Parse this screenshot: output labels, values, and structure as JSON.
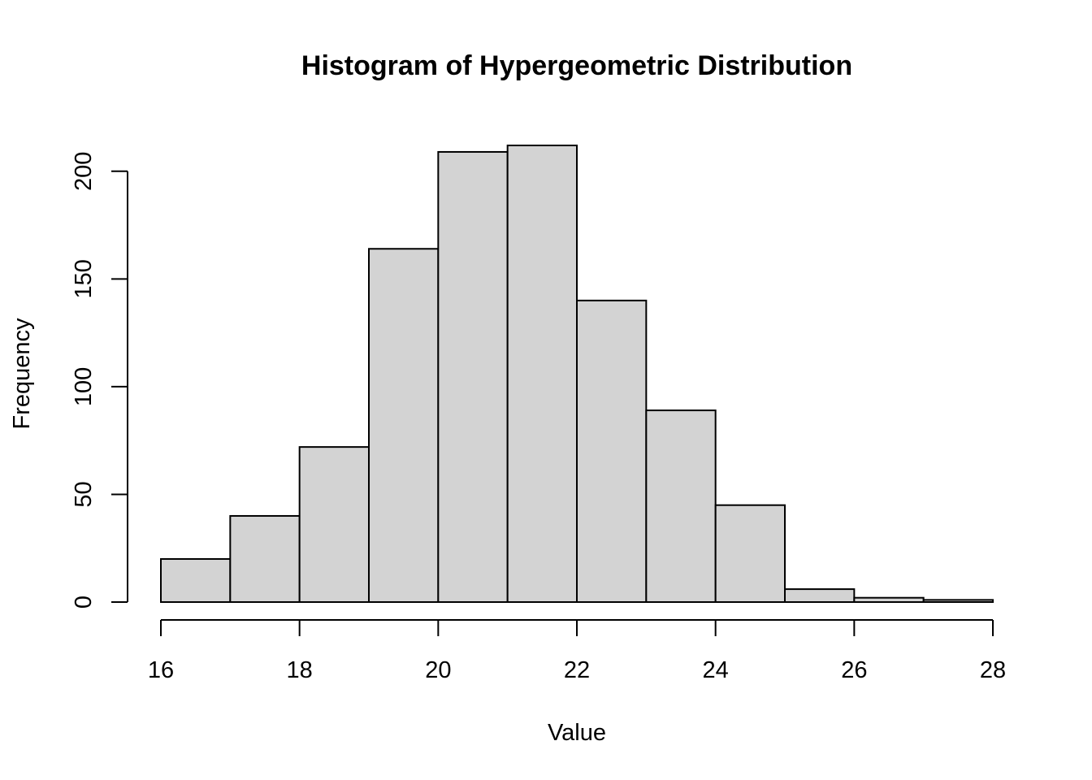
{
  "chart_data": {
    "type": "bar",
    "title": "Histogram of Hypergeometric Distribution",
    "xlabel": "Value",
    "ylabel": "Frequency",
    "bin_edges": [
      16,
      17,
      18,
      19,
      20,
      21,
      22,
      23,
      24,
      25,
      26,
      27,
      28
    ],
    "values": [
      20,
      40,
      72,
      164,
      209,
      212,
      140,
      89,
      45,
      6,
      2,
      1
    ],
    "xlim": [
      16,
      28
    ],
    "ylim": [
      0,
      212
    ],
    "x_ticks": [
      16,
      18,
      20,
      22,
      24,
      26,
      28
    ],
    "y_ticks": [
      0,
      50,
      100,
      150,
      200
    ],
    "colors": {
      "bar_fill": "#d3d3d3",
      "bar_stroke": "#000000"
    },
    "grid": false,
    "legend": "none"
  }
}
